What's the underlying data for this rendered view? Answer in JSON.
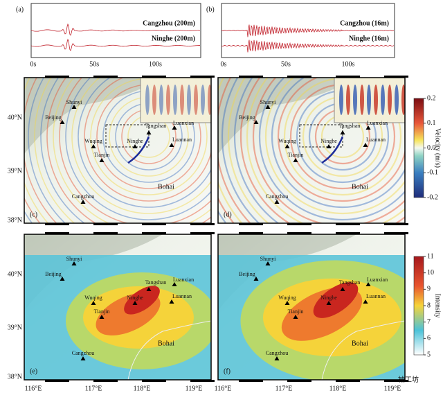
{
  "traces": {
    "panels": [
      {
        "label": "(a)",
        "top": "Cangzhou (200m)",
        "bottom": "Ninghe (200m)"
      },
      {
        "label": "(b)",
        "top": "Cangzhou (16m)",
        "bottom": "Ninghe (16m)"
      }
    ],
    "ticks": [
      "0s",
      "50s",
      "100s"
    ]
  },
  "maps": {
    "labels": [
      "(c)",
      "(d)",
      "(e)",
      "(f)"
    ],
    "stations": [
      "Shunyi",
      "Beijing",
      "Tangshan",
      "Luanxian",
      "Luannan",
      "Wuqing",
      "Tianjin",
      "Ninghe",
      "Cangzhou"
    ],
    "sea": "Bohai",
    "lat_ticks": [
      "40°N",
      "39°N",
      "38°N"
    ],
    "lon_ticks": [
      "116°E",
      "117°E",
      "118°E",
      "119°E"
    ]
  },
  "colorbars": [
    {
      "title": "Velocity (m/s)",
      "ticks": [
        "0.2",
        "0.1",
        "0.0",
        "-0.1",
        "-0.2"
      ]
    },
    {
      "title": "Intensity",
      "ticks": [
        "11",
        "10",
        "9",
        "8",
        "7",
        "6",
        "5"
      ]
    }
  ],
  "watermark": "袖工坊"
}
